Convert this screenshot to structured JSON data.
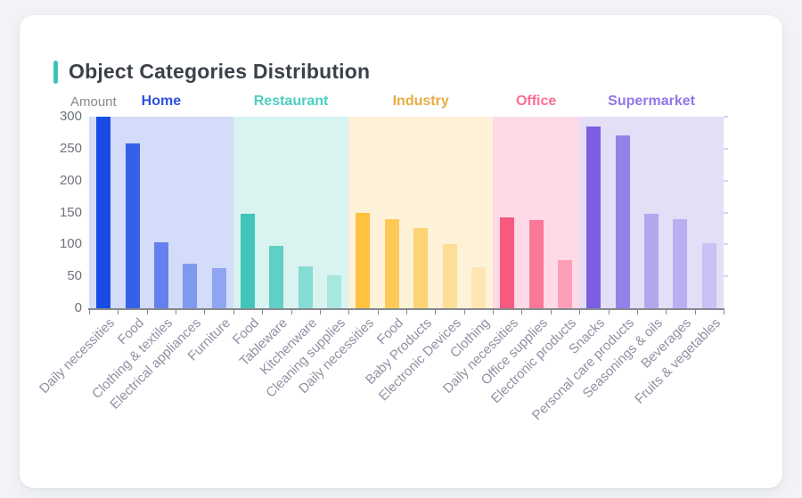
{
  "header": {
    "title": "Object Categories Distribution",
    "accent_color": "#3fc4b3"
  },
  "chart_data": {
    "type": "bar",
    "title": "Object Categories Distribution",
    "xlabel": "",
    "ylabel": "Amount",
    "ylim": [
      0,
      300
    ],
    "yticks": [
      0,
      50,
      100,
      150,
      200,
      250,
      300
    ],
    "grid": false,
    "legend_position": "group-headers-top",
    "groups": [
      {
        "name": "Home",
        "header_color": "#2e50df",
        "panel_color": "#d3dcf8",
        "categories": [
          "Daily necessities",
          "Food",
          "Clothing & textiles",
          "Electrical appliances",
          "Furniture"
        ],
        "values": [
          300,
          258,
          103,
          70,
          63
        ],
        "bar_colors": [
          "#1a4be5",
          "#3561e8",
          "#6480ec",
          "#8099f0",
          "#8fa5f2"
        ]
      },
      {
        "name": "Restaurant",
        "header_color": "#4bcfc2",
        "panel_color": "#d9f3f0",
        "categories": [
          "Food",
          "Tableware",
          "Kitchenware",
          "Cleaning supplies"
        ],
        "values": [
          148,
          98,
          65,
          51
        ],
        "bar_colors": [
          "#3fc5ba",
          "#60d0c6",
          "#86dcd4",
          "#a7e7e0"
        ]
      },
      {
        "name": "Industry",
        "header_color": "#e9ab3f",
        "panel_color": "#fdf2d7",
        "categories": [
          "Daily necessities",
          "Food",
          "Baby Products",
          "Electronic Devices",
          "Clothing"
        ],
        "values": [
          150,
          139,
          126,
          100,
          64
        ],
        "bar_colors": [
          "#fec23f",
          "#fdca58",
          "#fdd373",
          "#fede97",
          "#fee6b2"
        ]
      },
      {
        "name": "Office",
        "header_color": "#f96e93",
        "panel_color": "#fedae7",
        "categories": [
          "Daily necessities",
          "Office supplies",
          "Electronic products"
        ],
        "values": [
          142,
          138,
          75
        ],
        "bar_colors": [
          "#f8597f",
          "#fa7795",
          "#fc9fb6"
        ]
      },
      {
        "name": "Supermarket",
        "header_color": "#8f77e6",
        "panel_color": "#e4def6",
        "categories": [
          "Snacks",
          "Personal care products",
          "Seasonings & oils",
          "Beverages",
          "Fruits & vegetables"
        ],
        "values": [
          285,
          271,
          148,
          140,
          102
        ],
        "bar_colors": [
          "#7c5fe0",
          "#9483e7",
          "#b2a6ee",
          "#baaff0",
          "#c9c0f4"
        ]
      }
    ],
    "axis_style": {
      "axis_line_color": "#85898f",
      "tick_color": "#85898f",
      "ytick_label_color": "#6e737a",
      "xtick_label_color": "#8e92a2",
      "right_tick_color": "#d9d3ef"
    }
  }
}
